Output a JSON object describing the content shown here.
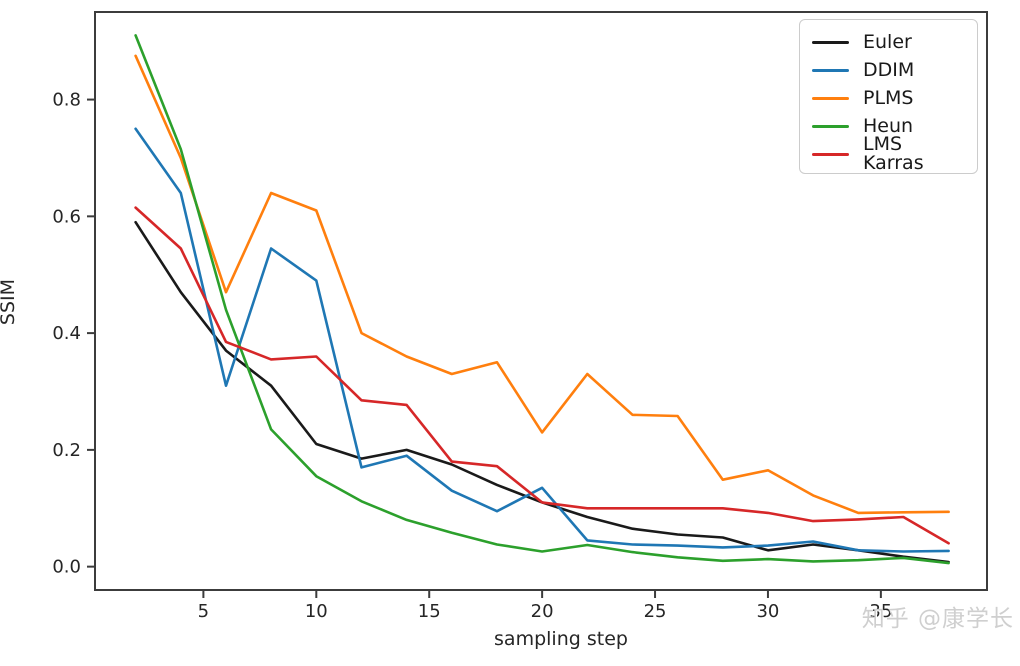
{
  "watermark": "知乎 @康学长",
  "chart_data": {
    "type": "line",
    "title": "",
    "xlabel": "sampling step",
    "ylabel": "SSIM",
    "grid": false,
    "legend_position": "upper right",
    "xlim": [
      0.2,
      39.7
    ],
    "ylim": [
      -0.04,
      0.95
    ],
    "xticks": [
      5,
      10,
      15,
      20,
      25,
      30,
      35
    ],
    "yticks": [
      0.0,
      0.2,
      0.4,
      0.6,
      0.8
    ],
    "x": [
      2,
      4,
      6,
      8,
      10,
      12,
      14,
      16,
      18,
      20,
      22,
      24,
      26,
      28,
      30,
      32,
      34,
      36,
      38
    ],
    "series": [
      {
        "name": "Euler",
        "color": "#1a1a1a",
        "values": [
          0.59,
          0.47,
          0.37,
          0.31,
          0.21,
          0.185,
          0.2,
          0.175,
          0.14,
          0.11,
          0.085,
          0.065,
          0.055,
          0.05,
          0.028,
          0.038,
          0.028,
          0.017,
          0.008
        ]
      },
      {
        "name": "DDIM",
        "color": "#1f77b4",
        "values": [
          0.75,
          0.64,
          0.31,
          0.545,
          0.49,
          0.17,
          0.19,
          0.13,
          0.095,
          0.135,
          0.045,
          0.038,
          0.036,
          0.033,
          0.036,
          0.043,
          0.028,
          0.026,
          0.027
        ]
      },
      {
        "name": "PLMS",
        "color": "#ff7f0e",
        "values": [
          0.875,
          0.7,
          0.47,
          0.64,
          0.61,
          0.4,
          0.36,
          0.33,
          0.35,
          0.23,
          0.33,
          0.26,
          0.258,
          0.149,
          0.165,
          0.122,
          0.092,
          0.093,
          0.094
        ]
      },
      {
        "name": "Heun",
        "color": "#2ca02c",
        "values": [
          0.91,
          0.715,
          0.44,
          0.235,
          0.155,
          0.112,
          0.08,
          0.058,
          0.038,
          0.026,
          0.037,
          0.025,
          0.016,
          0.01,
          0.013,
          0.009,
          0.011,
          0.015,
          0.006
        ]
      },
      {
        "name": "LMS Karras",
        "color": "#d62728",
        "values": [
          0.615,
          0.545,
          0.385,
          0.355,
          0.36,
          0.285,
          0.277,
          0.18,
          0.172,
          0.11,
          0.1,
          0.1,
          0.1,
          0.1,
          0.092,
          0.078,
          0.081,
          0.085,
          0.04
        ]
      }
    ]
  }
}
